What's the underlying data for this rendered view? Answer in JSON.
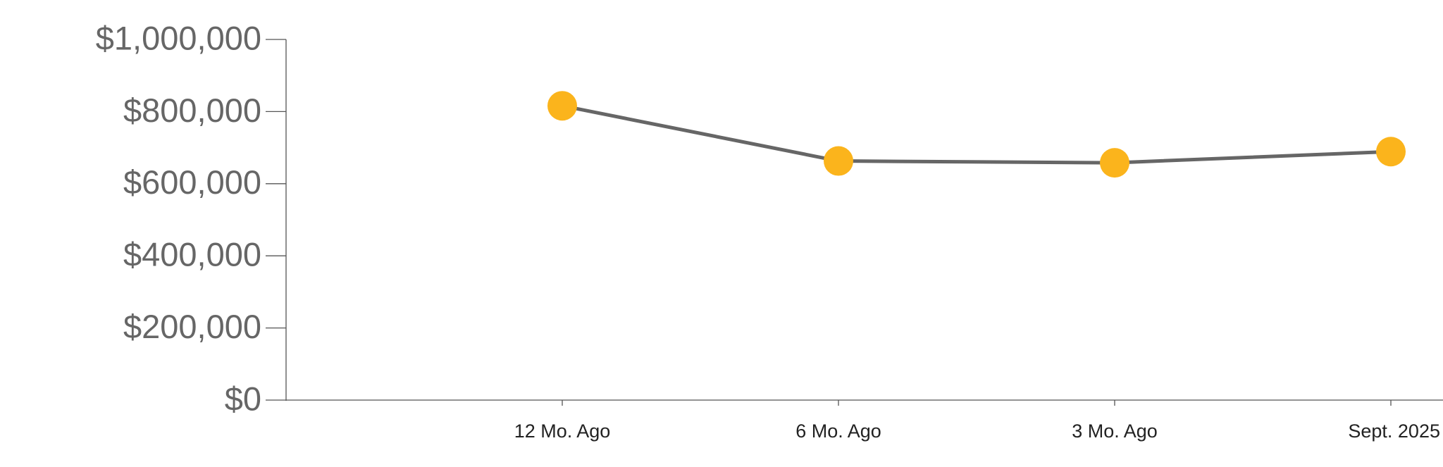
{
  "chart_data": {
    "type": "line",
    "categories": [
      "12 Mo. Ago",
      "6 Mo. Ago",
      "3 Mo. Ago",
      "Sept. 2025"
    ],
    "series": [
      {
        "values": [
          816000,
          663000,
          658000,
          689000
        ],
        "color": "#666666",
        "marker_color": "#fbb41c"
      }
    ],
    "ylim": [
      0,
      1000000
    ],
    "yticks": [
      {
        "value": 0,
        "label": "$0"
      },
      {
        "value": 200000,
        "label": "$200,000"
      },
      {
        "value": 400000,
        "label": "$400,000"
      },
      {
        "value": 600000,
        "label": "$600,000"
      },
      {
        "value": 800000,
        "label": "$800,000"
      },
      {
        "value": 1000000,
        "label": "$1,000,000"
      }
    ],
    "grid": false
  }
}
